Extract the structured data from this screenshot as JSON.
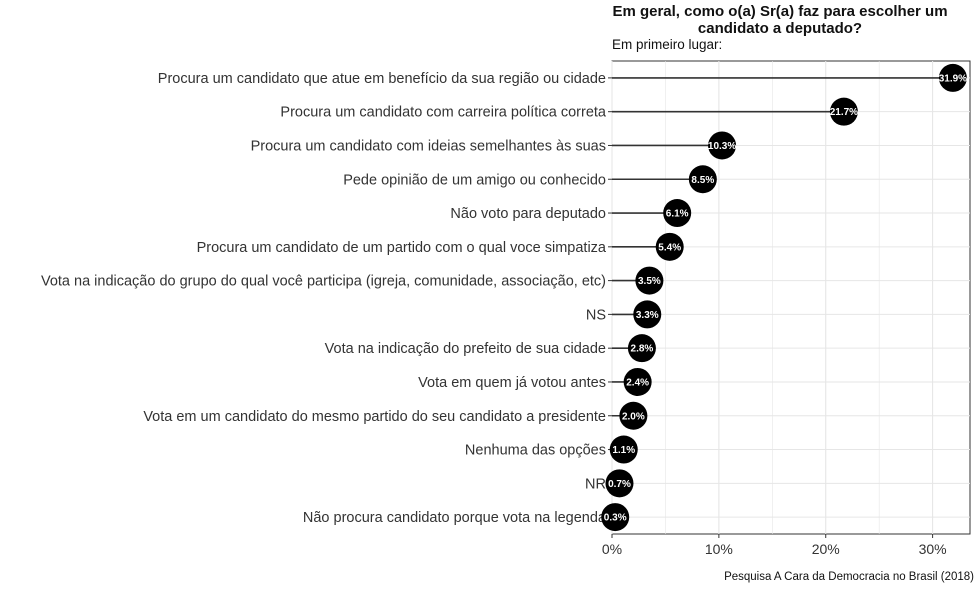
{
  "chart_data": {
    "type": "lollipop",
    "title": "Em geral, como o(a) Sr(a) faz para escolher um candidato a deputado?",
    "subtitle": "Em primeiro lugar:",
    "caption": "Pesquisa A Cara da Democracia no Brasil (2018)",
    "xlim": [
      0,
      33.5
    ],
    "x_ticks": [
      0,
      10,
      20,
      30
    ],
    "x_tick_labels": [
      "0%",
      "10%",
      "20%",
      "30%"
    ],
    "grid": true,
    "categories": [
      "Procura um candidato que atue em benefício da sua região ou cidade",
      "Procura um candidato com carreira política correta",
      "Procura um candidato com ideias semelhantes às suas",
      "Pede opinião de um amigo ou conhecido",
      "Não voto para deputado",
      "Procura um candidato de um partido com o qual voce simpatiza",
      "Vota na indicação do grupo do qual você participa (igreja, comunidade, associação, etc)",
      "NS",
      "Vota na indicação do prefeito de sua cidade",
      "Vota em quem já votou antes",
      "Vota em um candidato do mesmo partido do seu candidato a presidente",
      "Nenhuma das opções",
      "NR",
      "Não procura candidato porque vota na legenda"
    ],
    "values": [
      31.9,
      21.7,
      10.3,
      8.5,
      6.1,
      5.4,
      3.5,
      3.3,
      2.8,
      2.4,
      2.0,
      1.1,
      0.7,
      0.3
    ],
    "value_labels": [
      "31.9%",
      "21.7%",
      "10.3%",
      "8.5%",
      "6.1%",
      "5.4%",
      "3.5%",
      "3.3%",
      "2.8%",
      "2.4%",
      "2.0%",
      "1.1%",
      "0.7%",
      "0.3%"
    ],
    "colors": {
      "dot": "#000000",
      "stem": "#333333",
      "grid": "#e6e6e6",
      "label": "#ffffff"
    }
  }
}
